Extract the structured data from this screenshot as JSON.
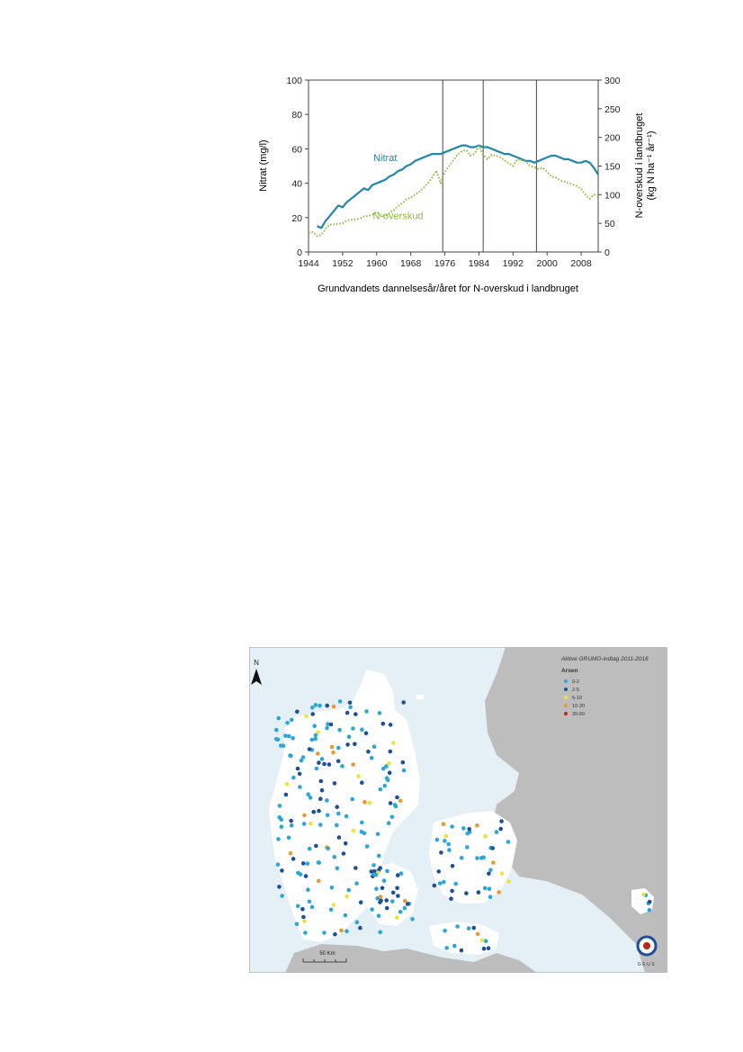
{
  "chart_data": {
    "type": "line",
    "xlabel": "Grundvandets dannelsesår/året for N-overskud i landbruget",
    "ylabel_left": "Nitrat (mg/l)",
    "ylabel_right_line1": "N-overskud i landbruget",
    "ylabel_right_line2": "(kg N ha⁻¹ år⁻¹)",
    "xlim": [
      1944,
      2012
    ],
    "ylim_left": [
      0,
      100
    ],
    "ylim_right": [
      0,
      300
    ],
    "x_ticks": [
      1944,
      1952,
      1960,
      1968,
      1976,
      1984,
      1992,
      2000,
      2008
    ],
    "y_ticks_left": [
      0,
      20,
      40,
      60,
      80,
      100
    ],
    "y_ticks_right": [
      0,
      50,
      100,
      150,
      200,
      250,
      300
    ],
    "vertical_lines": [
      1975.5,
      1985,
      1997.5
    ],
    "grid": false,
    "series": [
      {
        "name": "Nitrat",
        "axis": "left",
        "color": "#1f86ad",
        "style": "solid",
        "points": [
          [
            1946,
            15
          ],
          [
            1947,
            14
          ],
          [
            1948,
            18
          ],
          [
            1949,
            21
          ],
          [
            1950,
            24
          ],
          [
            1951,
            27
          ],
          [
            1952,
            26
          ],
          [
            1953,
            29
          ],
          [
            1954,
            31
          ],
          [
            1955,
            33
          ],
          [
            1956,
            35
          ],
          [
            1957,
            37
          ],
          [
            1958,
            36
          ],
          [
            1959,
            39
          ],
          [
            1960,
            40
          ],
          [
            1961,
            41
          ],
          [
            1962,
            42
          ],
          [
            1963,
            44
          ],
          [
            1964,
            45
          ],
          [
            1965,
            47
          ],
          [
            1966,
            48
          ],
          [
            1967,
            50
          ],
          [
            1968,
            51
          ],
          [
            1969,
            53
          ],
          [
            1970,
            54
          ],
          [
            1971,
            55
          ],
          [
            1972,
            56
          ],
          [
            1973,
            57
          ],
          [
            1974,
            57
          ],
          [
            1975,
            57
          ],
          [
            1976,
            58
          ],
          [
            1977,
            59
          ],
          [
            1978,
            60
          ],
          [
            1979,
            61
          ],
          [
            1980,
            62
          ],
          [
            1981,
            62
          ],
          [
            1982,
            61
          ],
          [
            1983,
            61
          ],
          [
            1984,
            62
          ],
          [
            1985,
            61
          ],
          [
            1986,
            61
          ],
          [
            1987,
            60
          ],
          [
            1988,
            59
          ],
          [
            1989,
            58
          ],
          [
            1990,
            57
          ],
          [
            1991,
            57
          ],
          [
            1992,
            56
          ],
          [
            1993,
            55
          ],
          [
            1994,
            54
          ],
          [
            1995,
            53
          ],
          [
            1996,
            53
          ],
          [
            1997,
            52
          ],
          [
            1998,
            53
          ],
          [
            1999,
            54
          ],
          [
            2000,
            55
          ],
          [
            2001,
            56
          ],
          [
            2002,
            56
          ],
          [
            2003,
            55
          ],
          [
            2004,
            54
          ],
          [
            2005,
            54
          ],
          [
            2006,
            53
          ],
          [
            2007,
            52
          ],
          [
            2008,
            52
          ],
          [
            2009,
            53
          ],
          [
            2010,
            52
          ],
          [
            2011,
            49
          ],
          [
            2012,
            45
          ]
        ]
      },
      {
        "name": "N-overskud",
        "axis": "right",
        "color": "#8dbb3d",
        "style": "dotted",
        "points": [
          [
            1944,
            33
          ],
          [
            1945,
            35
          ],
          [
            1946,
            28
          ],
          [
            1947,
            30
          ],
          [
            1948,
            40
          ],
          [
            1949,
            48
          ],
          [
            1950,
            48
          ],
          [
            1951,
            49
          ],
          [
            1952,
            50
          ],
          [
            1953,
            55
          ],
          [
            1954,
            56
          ],
          [
            1955,
            57
          ],
          [
            1956,
            58
          ],
          [
            1957,
            62
          ],
          [
            1958,
            63
          ],
          [
            1959,
            65
          ],
          [
            1960,
            70
          ],
          [
            1961,
            64
          ],
          [
            1962,
            63
          ],
          [
            1963,
            68
          ],
          [
            1964,
            73
          ],
          [
            1965,
            80
          ],
          [
            1966,
            85
          ],
          [
            1967,
            92
          ],
          [
            1968,
            95
          ],
          [
            1969,
            100
          ],
          [
            1970,
            105
          ],
          [
            1971,
            112
          ],
          [
            1972,
            120
          ],
          [
            1973,
            130
          ],
          [
            1974,
            142
          ],
          [
            1975,
            120
          ],
          [
            1976,
            140
          ],
          [
            1977,
            150
          ],
          [
            1978,
            160
          ],
          [
            1979,
            170
          ],
          [
            1980,
            176
          ],
          [
            1981,
            178
          ],
          [
            1982,
            168
          ],
          [
            1983,
            172
          ],
          [
            1984,
            185
          ],
          [
            1985,
            170
          ],
          [
            1986,
            162
          ],
          [
            1987,
            170
          ],
          [
            1988,
            168
          ],
          [
            1989,
            165
          ],
          [
            1990,
            160
          ],
          [
            1991,
            155
          ],
          [
            1992,
            150
          ],
          [
            1993,
            162
          ],
          [
            1994,
            160
          ],
          [
            1995,
            158
          ],
          [
            1996,
            150
          ],
          [
            1997,
            148
          ],
          [
            1998,
            145
          ],
          [
            1999,
            147
          ],
          [
            2000,
            140
          ],
          [
            2001,
            132
          ],
          [
            2002,
            130
          ],
          [
            2003,
            125
          ],
          [
            2004,
            123
          ],
          [
            2005,
            120
          ],
          [
            2006,
            118
          ],
          [
            2007,
            115
          ],
          [
            2008,
            110
          ],
          [
            2009,
            100
          ],
          [
            2010,
            93
          ],
          [
            2011,
            100
          ],
          [
            2012,
            98
          ]
        ]
      }
    ],
    "annotations": [
      {
        "text": "Nitrat",
        "x": 1962,
        "y_left": 53,
        "color": "#1f86ad"
      },
      {
        "text": "N-overskud",
        "x": 1965,
        "y_left": 19,
        "color": "#8dbb3d"
      }
    ]
  },
  "map": {
    "legend_title": "Aktive GRUMO-indtag 2011-2016",
    "legend_subtitle": "Arsen",
    "classes": [
      {
        "label": "0-2",
        "color": "#2aa6dc"
      },
      {
        "label": "2-5",
        "color": "#1d4f9c"
      },
      {
        "label": "5-10",
        "color": "#f0e23a"
      },
      {
        "label": "10-20",
        "color": "#e89a2e"
      },
      {
        "label": "20-69",
        "color": "#c0241c"
      }
    ],
    "north_label": "N",
    "scale_label": "50 Km",
    "logo_text": "GEUS",
    "sea_color": "#e4f0f5",
    "land_color": "#ffffff",
    "foreign_land_color": "#bdbdbd"
  }
}
